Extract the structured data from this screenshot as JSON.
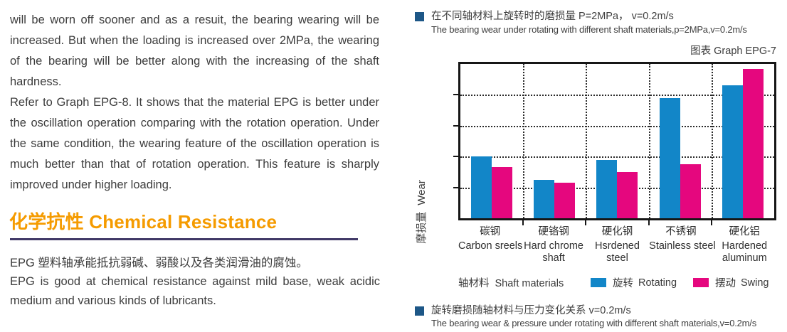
{
  "left_column": {
    "paragraph1": "will be worn off sooner and as a resuit, the bearing wearing will be increased. But when the loading is increased over 2MPa, the wearing of the bearing will be better along with the increasing of the shaft hardness.",
    "paragraph2": "Refer to Graph EPG-8. It shows that the material EPG is better under the oscillation operation comparing with the rotation operation. Under the same condition, the wearing feature of the oscillation operation is much better than that of rotation operation. This feature is sharply improved under higher loading.",
    "section_heading": "化学抗性 Chemical Resistance",
    "heading_color": "#f59b00",
    "divider_color": "#413967",
    "paragraph3_cn": "EPG 塑料轴承能抵抗弱碱、弱酸以及各类润滑油的腐蚀。",
    "paragraph3_en": "EPG is good at chemical resistance against mild base, weak acidic medium and various kinds of lubricants."
  },
  "right_column": {
    "bullet_color": "#1d5787",
    "caption_top_cn": "在不同轴材料上旋转时的磨损量 P=2MPa， v=0.2m/s",
    "caption_top_en": "The bearing wear under rotating with different shaft materials,p=2MPa,v=0.2m/s",
    "graph_label": "图表 Graph EPG-7",
    "caption_bottom_cn": "旋转磨损随轴材料与压力变化关系 v=0.2m/s",
    "caption_bottom_en": "The bearing wear & pressure under rotating with different shaft materials,v=0.2m/s"
  },
  "chart_data": {
    "type": "bar",
    "title_cn": "在不同轴材料上旋转时的磨损量 P=2MPa， v=0.2m/s",
    "title_en": "The bearing wear under rotating with different shaft materials,p=2MPa,v=0.2m/s",
    "graph_id": "图表 Graph EPG-7",
    "categories": [
      {
        "cn": "碳钢",
        "en_lines": [
          "Carbon sreels"
        ]
      },
      {
        "cn": "硬铬钢",
        "en_lines": [
          "Hard chrome",
          "shaft"
        ]
      },
      {
        "cn": "硬化钢",
        "en_lines": [
          "Hsrdened",
          "steel"
        ]
      },
      {
        "cn": "不锈钢",
        "en_lines": [
          "Stainless steel"
        ]
      },
      {
        "cn": "硬化铝",
        "en_lines": [
          "Hardened",
          "aluminum"
        ]
      }
    ],
    "series": [
      {
        "name_cn": "旋转",
        "name_en": "Rotating",
        "color": "#1286c8",
        "values": [
          40,
          25,
          38,
          78,
          86
        ]
      },
      {
        "name_cn": "摆动",
        "name_en": "Swing",
        "color": "#e5077e",
        "values": [
          33,
          23,
          30,
          35,
          97
        ]
      }
    ],
    "ylabel_cn": "摩损量",
    "ylabel_en": "Wear",
    "xlabel_cn": "轴材料",
    "xlabel_en": "Shaft materials",
    "ylim": [
      0,
      100
    ],
    "y_axis_note": "no numeric tick labels; 5 equal divisions marked by dotted gridlines; values estimated as % of axis max",
    "grid": true,
    "legend_position": "bottom"
  }
}
